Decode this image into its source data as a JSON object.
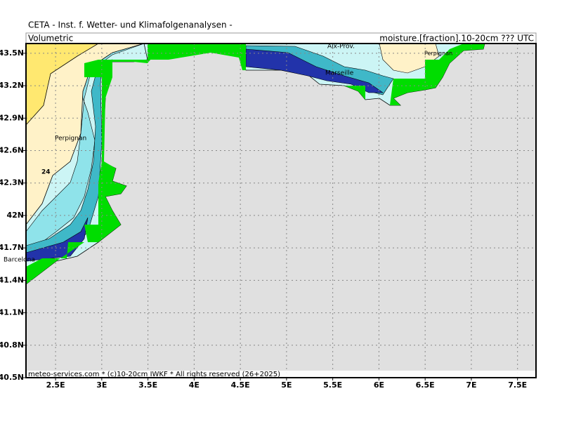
{
  "header": {
    "title": "CETA - Inst. f. Wetter- und Klimafolgenanalysen -",
    "left_label": "Volumetric",
    "right_label": "moisture.[fraction].10-20cm ??? UTC"
  },
  "footer": "meteo-services.com * (c)10-20cm IWKF * All rights reserved (26+2025)",
  "map": {
    "lon_range": [
      2.18,
      7.7
    ],
    "lat_range": [
      40.5,
      43.59
    ],
    "lon_ticks": [
      {
        "value": 2.5,
        "label": "2.5E"
      },
      {
        "value": 3,
        "label": "3E"
      },
      {
        "value": 3.5,
        "label": "3.5E"
      },
      {
        "value": 4,
        "label": "4E"
      },
      {
        "value": 4.5,
        "label": "4.5E"
      },
      {
        "value": 5,
        "label": "5E"
      },
      {
        "value": 5.5,
        "label": "5.5E"
      },
      {
        "value": 6,
        "label": "6E"
      },
      {
        "value": 6.5,
        "label": "6.5E"
      },
      {
        "value": 7,
        "label": "7E"
      },
      {
        "value": 7.5,
        "label": "7.5E"
      }
    ],
    "lat_ticks": [
      {
        "value": 40.5,
        "label": "40.5N"
      },
      {
        "value": 40.8,
        "label": "40.8N"
      },
      {
        "value": 41.1,
        "label": "41.1N"
      },
      {
        "value": 41.4,
        "label": "41.4N"
      },
      {
        "value": 41.7,
        "label": "41.7N"
      },
      {
        "value": 42,
        "label": "42N"
      },
      {
        "value": 42.3,
        "label": "42.3N"
      },
      {
        "value": 42.6,
        "label": "42.6N"
      },
      {
        "value": 42.9,
        "label": "42.9N"
      },
      {
        "value": 43.2,
        "label": "43.2N"
      },
      {
        "value": 43.5,
        "label": "43.5N"
      }
    ],
    "places": [
      "Perpignan",
      "Barcelona",
      "Marseille",
      "Aix-Prov.",
      "Perpignan"
    ],
    "contour_label": "24"
  }
}
